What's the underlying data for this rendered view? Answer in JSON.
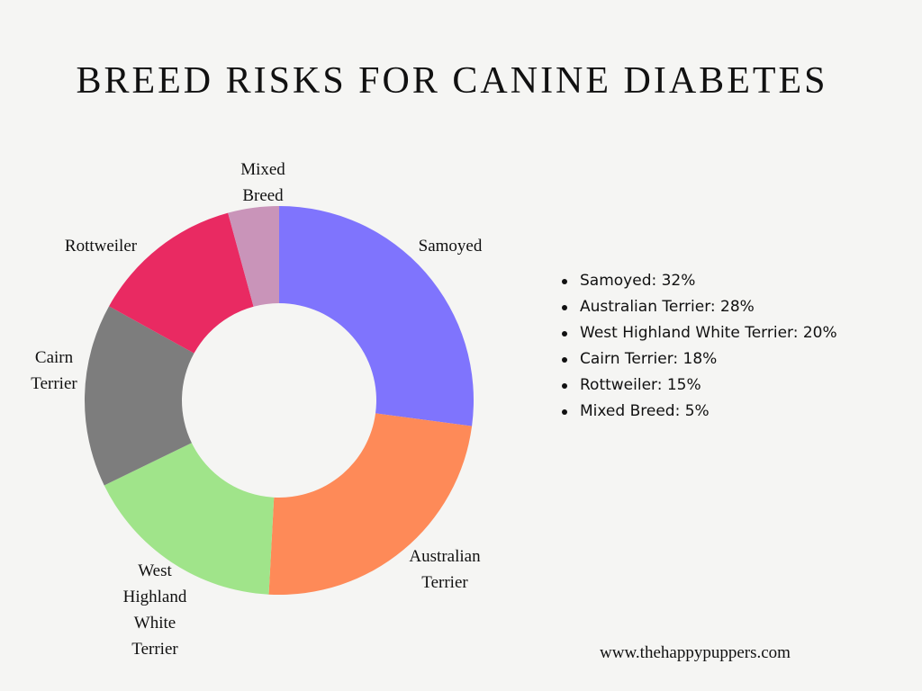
{
  "chart_data": {
    "type": "pie",
    "subtype": "donut",
    "title": "BREED RISKS FOR CANINE DIABETES",
    "categories": [
      "Samoyed",
      "Australian Terrier",
      "West Highland White Terrier",
      "Cairn Terrier",
      "Rottweiler",
      "Mixed Breed"
    ],
    "values": [
      32,
      28,
      20,
      18,
      15,
      5
    ],
    "colors": [
      "#7f74fd",
      "#fe8a58",
      "#a0e48a",
      "#7d7d7d",
      "#e92a62",
      "#c994b9"
    ],
    "legend": [
      "Samoyed: 32%",
      "Australian Terrier: 28%",
      "West Highland White Terrier: 20%",
      "Cairn Terrier: 18%",
      "Rottweiler: 15%",
      "Mixed Breed: 5%"
    ],
    "legend_position": "right"
  },
  "footer": {
    "website": "www.thehappypuppers.com"
  },
  "colors": {
    "background": "#f5f5f3"
  }
}
